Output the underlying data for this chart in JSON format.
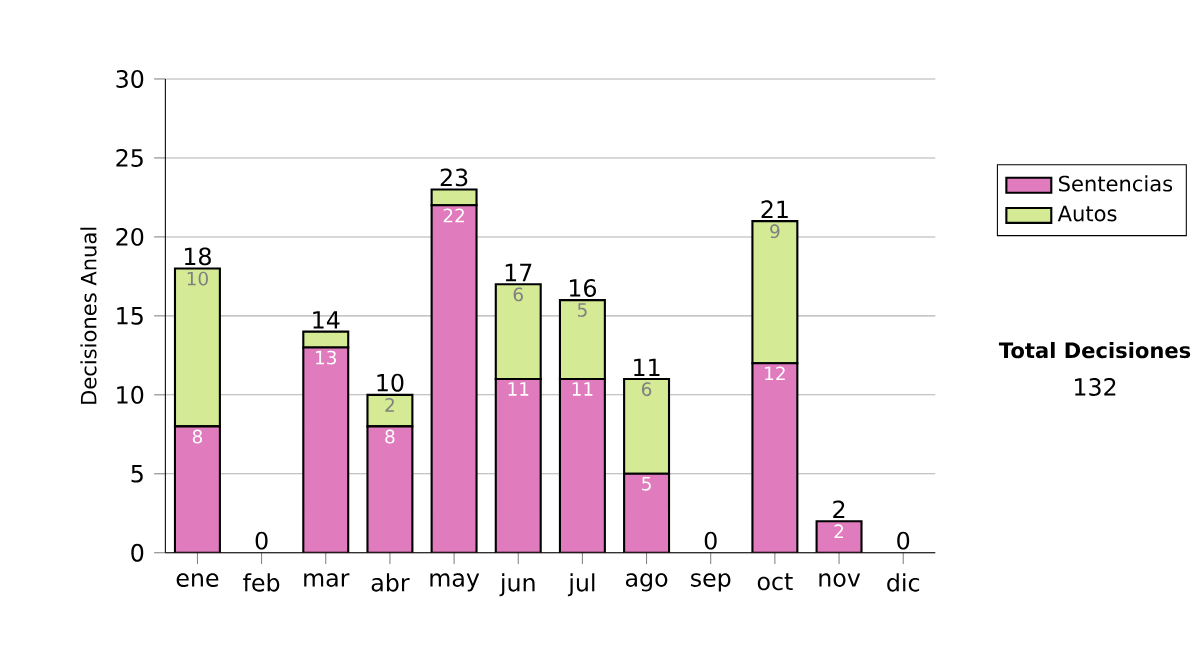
{
  "chart_data": {
    "type": "bar",
    "stacked": true,
    "ylabel": "Decisiones Anual",
    "categories": [
      "ene",
      "feb",
      "mar",
      "abr",
      "may",
      "jun",
      "jul",
      "ago",
      "sep",
      "oct",
      "nov",
      "dic"
    ],
    "series": [
      {
        "name": "Sentencias",
        "color": "#e07bbe",
        "values": [
          8,
          0,
          13,
          8,
          22,
          11,
          11,
          5,
          0,
          12,
          2,
          0
        ],
        "value_labels": [
          "8",
          null,
          "13",
          "8",
          "22",
          "11",
          "11",
          "5",
          null,
          "12",
          "2",
          null
        ]
      },
      {
        "name": "Autos",
        "color": "#d4ea94",
        "values": [
          10,
          0,
          1,
          2,
          1,
          6,
          5,
          6,
          0,
          9,
          0,
          0
        ],
        "value_labels": [
          "10",
          null,
          null,
          "2",
          null,
          "6",
          "5",
          "6",
          null,
          "9",
          null,
          null
        ]
      }
    ],
    "totals": [
      "18",
      "0",
      "14",
      "10",
      "23",
      "17",
      "16",
      "11",
      "0",
      "21",
      "2",
      "0"
    ],
    "ylim": [
      0,
      30
    ],
    "yticks": [
      0,
      5,
      10,
      15,
      20,
      25,
      30
    ],
    "grid": "y",
    "legend": "right",
    "annotations": [
      "Total Decisiones",
      "132"
    ]
  }
}
